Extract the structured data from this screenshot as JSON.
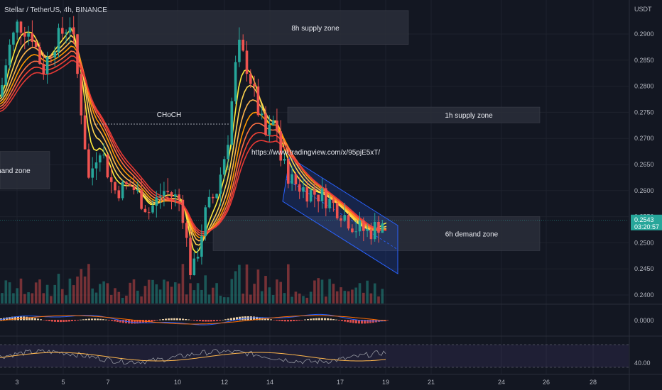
{
  "header": {
    "symbol": "Stellar / TetherUS, 4h, BINANCE",
    "currency": "USDT"
  },
  "chart_data": {
    "type": "candlestick",
    "price_axis": {
      "ticks": [
        "0.2900",
        "0.2850",
        "0.2800",
        "0.2750",
        "0.2700",
        "0.2650",
        "0.2600",
        "0.2550",
        "0.2500",
        "0.2450",
        "0.2400"
      ],
      "range": [
        0.238,
        0.296
      ]
    },
    "current_price": {
      "value": "0.2543",
      "countdown": "03:20:57"
    },
    "x_axis": {
      "ticks": [
        "3",
        "5",
        "7",
        "10",
        "12",
        "14",
        "17",
        "19",
        "21",
        "24",
        "26",
        "28"
      ]
    },
    "zones": [
      {
        "label": "8h supply zone",
        "low": 0.288,
        "high": 0.2945
      },
      {
        "label": "1h supply zone",
        "low": 0.273,
        "high": 0.276
      },
      {
        "label": "6h demand zone",
        "low": 0.2485,
        "high": 0.255
      },
      {
        "label": "mand zone",
        "low": 0.2603,
        "high": 0.2675
      }
    ],
    "annotations": {
      "choch": "CHoCH",
      "link": "https://www.tradingview.com/x/95pjE5xT/"
    },
    "macd_axis": {
      "label": "0.0000"
    },
    "rsi_axis": {
      "label": "40.00"
    },
    "ribbon_colors": [
      "#ffeb3b",
      "#ffd54f",
      "#ffb74d",
      "#ff9800",
      "#ff7043",
      "#f44336",
      "#e53935"
    ],
    "up_color": "#26a69a",
    "down_color": "#ef5350"
  }
}
